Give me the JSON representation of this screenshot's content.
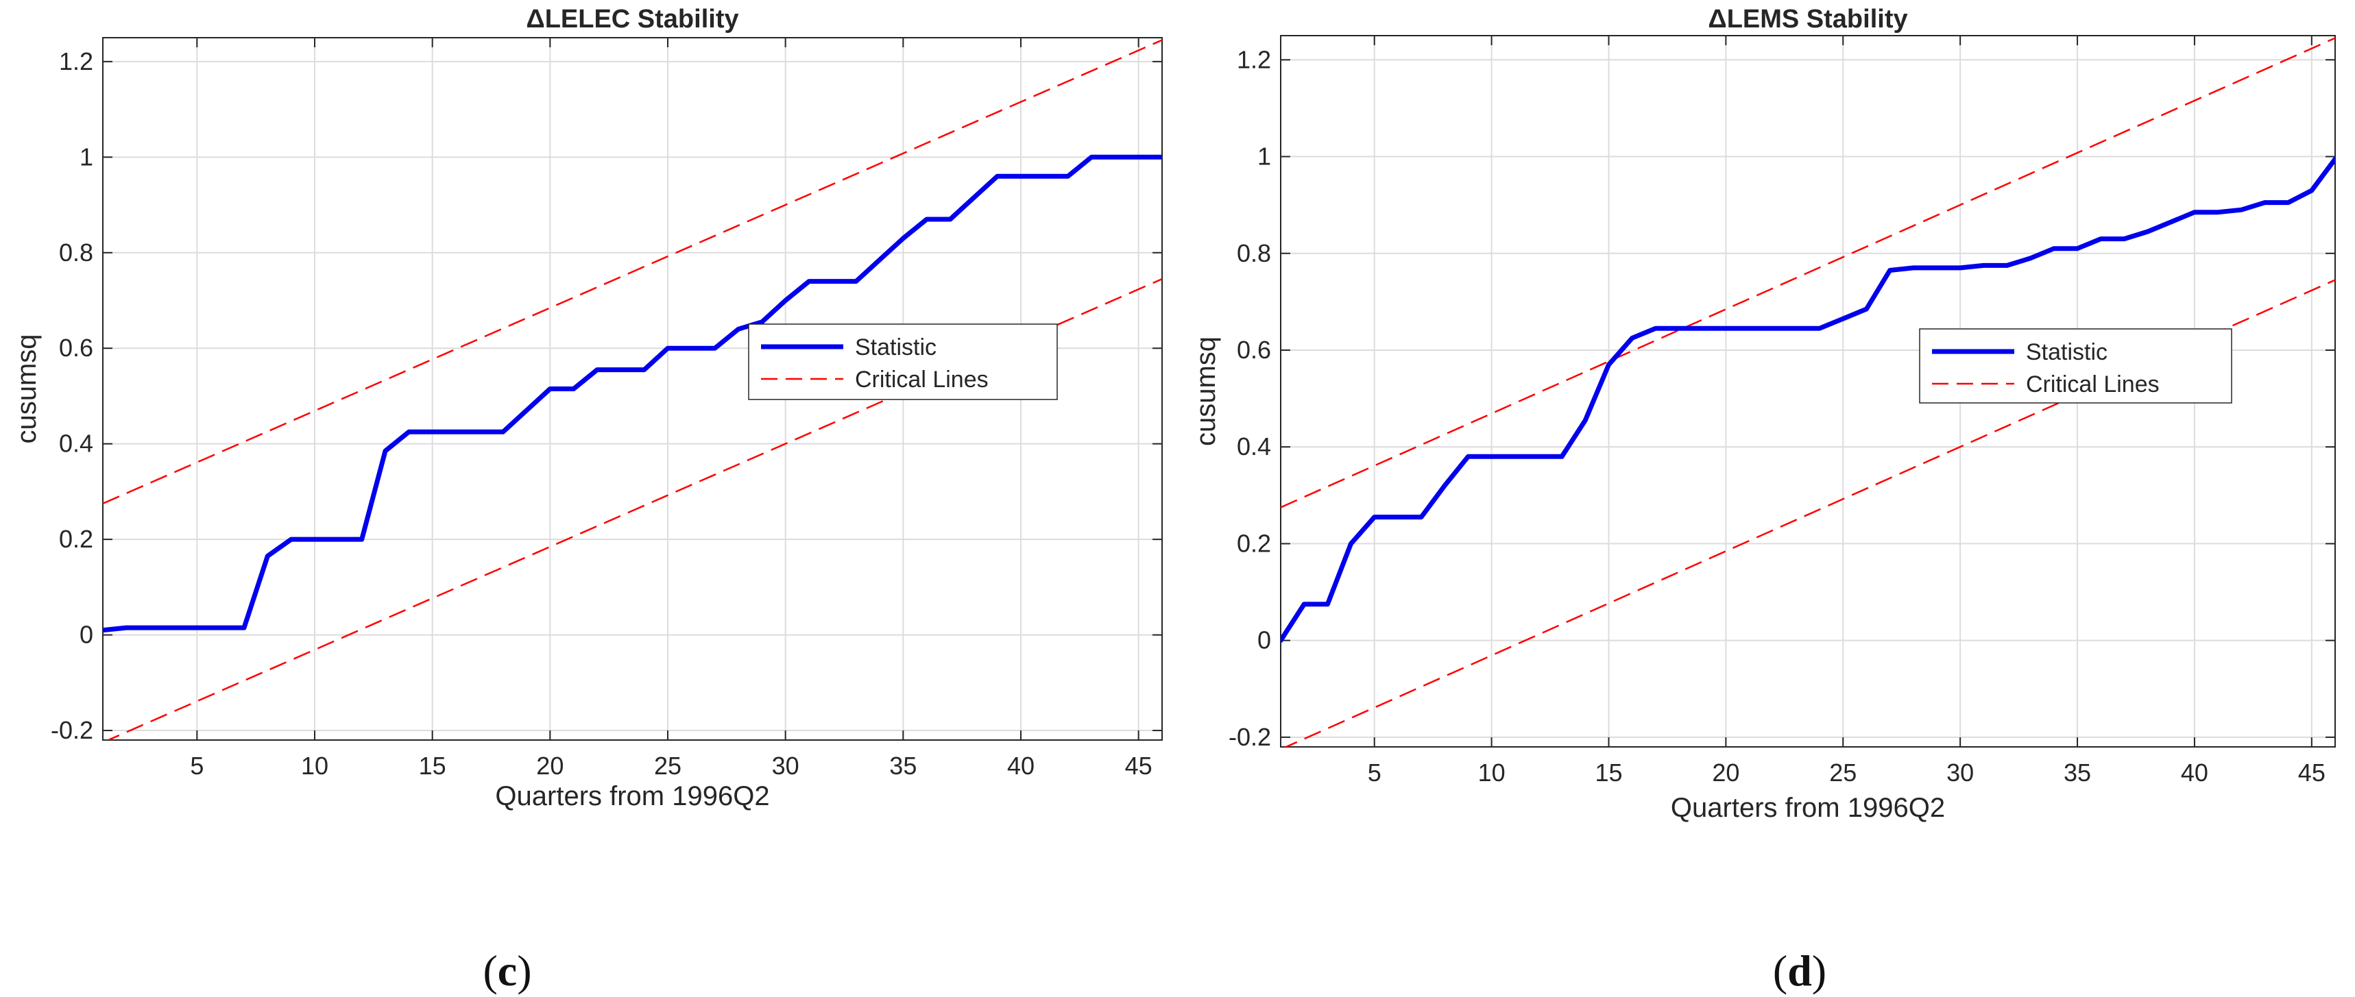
{
  "chart_data": [
    {
      "type": "line",
      "panel": "c",
      "title": "ΔLELEC Stability",
      "xlabel": "Quarters from 1996Q2",
      "ylabel": "cusumsq",
      "xlim": [
        1,
        46
      ],
      "ylim": [
        -0.22,
        1.25
      ],
      "xticks": [
        5,
        10,
        15,
        20,
        25,
        30,
        35,
        40,
        45
      ],
      "yticks": [
        -0.2,
        0,
        0.2,
        0.4,
        0.6,
        0.8,
        1,
        1.2
      ],
      "ytick_labels": [
        "-0.2",
        "0",
        "0.2",
        "0.4",
        "0.6",
        "0.8",
        "1",
        "1.2"
      ],
      "grid": true,
      "legend_position": "middle-right",
      "caption": "c",
      "series": [
        {
          "name": "Statistic",
          "color": "#0000ee",
          "style": "solid",
          "x": [
            1,
            2,
            3,
            4,
            5,
            6,
            7,
            8,
            9,
            10,
            11,
            12,
            13,
            14,
            15,
            16,
            17,
            18,
            19,
            20,
            21,
            22,
            23,
            24,
            25,
            26,
            27,
            28,
            29,
            30,
            31,
            32,
            33,
            34,
            35,
            36,
            37,
            38,
            39,
            40,
            41,
            42,
            43,
            44,
            45,
            46
          ],
          "y": [
            0.01,
            0.015,
            0.015,
            0.015,
            0.015,
            0.015,
            0.015,
            0.165,
            0.2,
            0.2,
            0.2,
            0.2,
            0.385,
            0.425,
            0.425,
            0.425,
            0.425,
            0.425,
            0.47,
            0.515,
            0.515,
            0.555,
            0.555,
            0.555,
            0.6,
            0.6,
            0.6,
            0.64,
            0.655,
            0.7,
            0.74,
            0.74,
            0.74,
            0.785,
            0.83,
            0.87,
            0.87,
            0.915,
            0.96,
            0.96,
            0.96,
            0.96,
            1.0,
            1.0,
            1.0,
            1.0
          ]
        },
        {
          "name": "Critical Lines",
          "color": "#ff0000",
          "style": "dashed",
          "lines": [
            {
              "x": [
                1,
                46
              ],
              "y": [
                0.275,
                1.245
              ]
            },
            {
              "x": [
                1,
                46
              ],
              "y": [
                -0.225,
                0.745
              ]
            }
          ]
        }
      ]
    },
    {
      "type": "line",
      "panel": "d",
      "title": "ΔLEMS Stability",
      "xlabel": "Quarters from 1996Q2",
      "ylabel": "cusumsq",
      "xlim": [
        1,
        46
      ],
      "ylim": [
        -0.22,
        1.25
      ],
      "xticks": [
        5,
        10,
        15,
        20,
        25,
        30,
        35,
        40,
        45
      ],
      "yticks": [
        -0.2,
        0,
        0.2,
        0.4,
        0.6,
        0.8,
        1,
        1.2
      ],
      "ytick_labels": [
        "-0.2",
        "0",
        "0.2",
        "0.4",
        "0.6",
        "0.8",
        "1",
        "1.2"
      ],
      "grid": true,
      "legend_position": "middle-right",
      "caption": "d",
      "series": [
        {
          "name": "Statistic",
          "color": "#0000ee",
          "style": "solid",
          "x": [
            1,
            2,
            3,
            4,
            5,
            6,
            7,
            8,
            9,
            10,
            11,
            12,
            13,
            14,
            15,
            16,
            17,
            18,
            19,
            20,
            21,
            22,
            23,
            24,
            25,
            26,
            27,
            28,
            29,
            30,
            31,
            32,
            33,
            34,
            35,
            36,
            37,
            38,
            39,
            40,
            41,
            42,
            43,
            44,
            45,
            46
          ],
          "y": [
            0.0,
            0.075,
            0.075,
            0.2,
            0.255,
            0.255,
            0.255,
            0.32,
            0.38,
            0.38,
            0.38,
            0.38,
            0.38,
            0.455,
            0.57,
            0.625,
            0.645,
            0.645,
            0.645,
            0.645,
            0.645,
            0.645,
            0.645,
            0.645,
            0.665,
            0.685,
            0.765,
            0.77,
            0.77,
            0.77,
            0.775,
            0.775,
            0.79,
            0.81,
            0.81,
            0.83,
            0.83,
            0.845,
            0.865,
            0.885,
            0.885,
            0.89,
            0.905,
            0.905,
            0.93,
            0.995
          ]
        },
        {
          "name": "Critical Lines",
          "color": "#ff0000",
          "style": "dashed",
          "lines": [
            {
              "x": [
                1,
                46
              ],
              "y": [
                0.275,
                1.245
              ]
            },
            {
              "x": [
                1,
                46
              ],
              "y": [
                -0.225,
                0.745
              ]
            }
          ]
        }
      ]
    }
  ]
}
